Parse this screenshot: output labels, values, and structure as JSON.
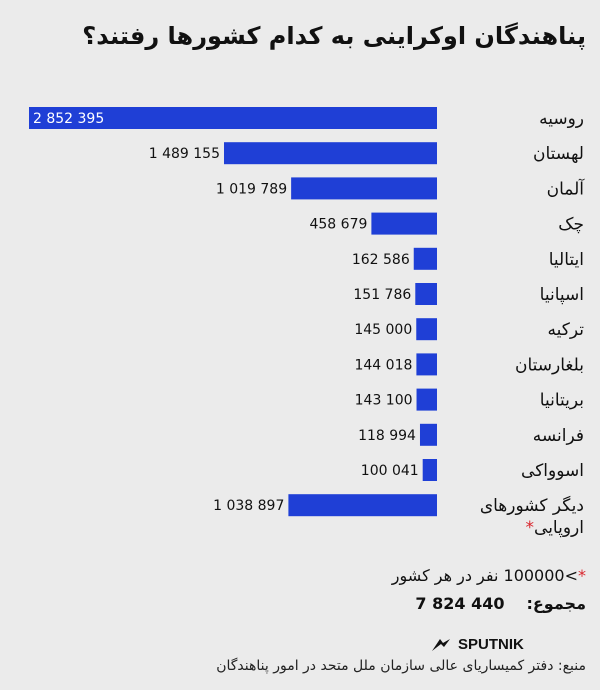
{
  "title": "پناهندگان اوکراینی به کدام کشورها رفتند؟",
  "chart_data": {
    "type": "bar",
    "orientation": "horizontal",
    "bar_color": "#1f3fd6",
    "categories": [
      "روسیه",
      "لهستان",
      "آلمان",
      "چک",
      "ایتالیا",
      "اسپانیا",
      "ترکیه",
      "بلغارستان",
      "بریتانیا",
      "فرانسه",
      "اسوواکی",
      "دیگر کشورهای اروپایی*"
    ],
    "values": [
      2852395,
      1489155,
      1019789,
      458679,
      162586,
      151786,
      145000,
      144018,
      143100,
      118994,
      100041,
      1038897
    ],
    "value_labels": [
      "2 852 395",
      "1 489 155",
      "1 019 789",
      "458 679",
      "162 586",
      "151 786",
      "145 000",
      "144 018",
      "143 100",
      "118 994",
      "100 041",
      "1 038 897"
    ],
    "xlim": [
      0,
      2852395
    ]
  },
  "footnote": {
    "marker": "*",
    "text": ">100000 نفر در هر کشور"
  },
  "total": {
    "label": "مجموع:",
    "value": "7 824 440"
  },
  "logo": {
    "text": "SPUTNIK",
    "icon": "sputnik-logo-icon"
  },
  "source": "منبع: دفتر کمیساریای عالی سازمان ملل متحد در امور پناهندگان"
}
